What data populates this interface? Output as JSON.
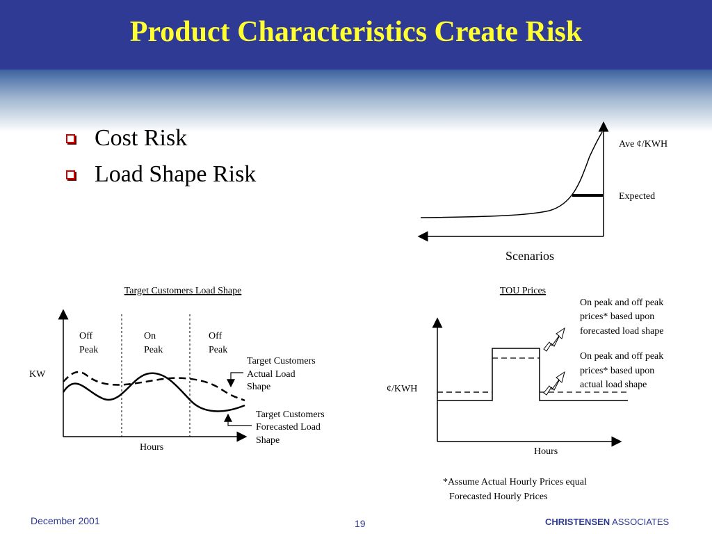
{
  "slide": {
    "title": "Product Characteristics Create Risk",
    "bullets": [
      "Cost Risk",
      "Load Shape Risk"
    ]
  },
  "cost_diagram": {
    "y_label": "Ave ¢/KWH",
    "line_label": "Expected",
    "x_label": "Scenarios"
  },
  "load_diagram": {
    "title": "Target Customers Load Shape",
    "y_label": "KW",
    "x_label": "Hours",
    "periods": [
      {
        "line1": "Off",
        "line2": "Peak"
      },
      {
        "line1": "On",
        "line2": "Peak"
      },
      {
        "line1": "Off",
        "line2": "Peak"
      }
    ],
    "actual_label": [
      "Target Customers",
      "Actual Load",
      "Shape"
    ],
    "forecast_label": [
      "Target Customers",
      "Forecasted Load",
      "Shape"
    ]
  },
  "tou_diagram": {
    "title": "TOU Prices",
    "y_label": "¢/KWH",
    "x_label": "Hours",
    "forecast_note": [
      "On peak and off peak",
      "prices* based upon",
      "forecasted load shape"
    ],
    "actual_note": [
      "On peak and off peak",
      "prices* based upon",
      "actual  load shape"
    ],
    "footnote": [
      "*Assume Actual Hourly Prices equal",
      "Forecasted Hourly Prices"
    ]
  },
  "footer": {
    "date": "December 2001",
    "page": "19",
    "company_bold": "CHRISTENSEN",
    "company_rest": "ASSOCIATES"
  }
}
